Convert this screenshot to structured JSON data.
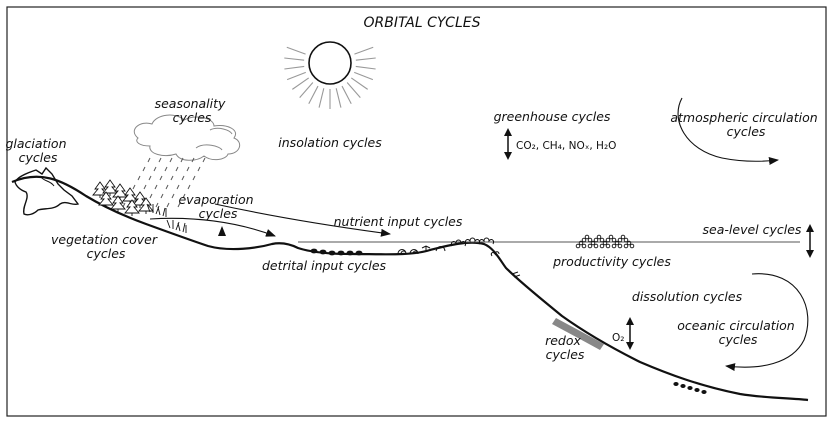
{
  "title": "ORBITAL CYCLES",
  "labels": {
    "seasonality": [
      "seasonality",
      "cycles"
    ],
    "glaciation": [
      "glaciation",
      "cycles"
    ],
    "insolation": "insolation cycles",
    "greenhouse": "greenhouse cycles",
    "greenhouse_gases": "CO₂, CH₄, NOₓ, H₂O",
    "atmospheric": [
      "atmospheric circulation",
      "cycles"
    ],
    "evaporation": [
      "evaporation",
      "cycles"
    ],
    "nutrient": "nutrient input cycles",
    "vegetation": [
      "vegetation cover",
      "cycles"
    ],
    "detrital": "detrital input cycles",
    "productivity": "productivity cycles",
    "sealevel": "sea-level cycles",
    "dissolution": "dissolution cycles",
    "oceanic": [
      "oceanic circulation",
      "cycles"
    ],
    "redox": [
      "redox",
      "cycles"
    ],
    "oxygen": "O₂"
  },
  "icons": [
    "sun-icon",
    "cloud-icon",
    "rain-icon",
    "trees-icon",
    "grass-icon",
    "shells-icon",
    "plankton-icon",
    "coral-icon"
  ]
}
